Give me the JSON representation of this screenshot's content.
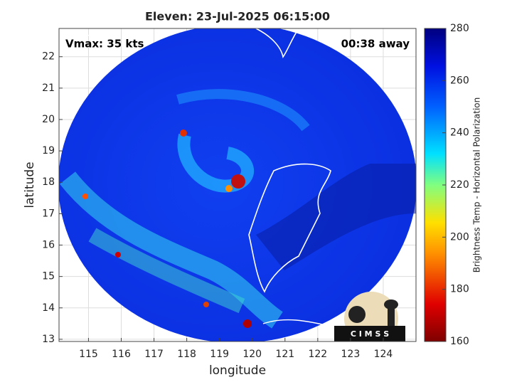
{
  "chart_data": {
    "type": "image",
    "title": "Eleven: 23-Jul-2025 06:15:00",
    "annotations": [
      "Vmax: 35 kts",
      "00:38 away"
    ],
    "xlabel": "longitude",
    "ylabel": "latitude",
    "xlim": [
      114.1,
      125.0
    ],
    "ylim": [
      12.93,
      22.9
    ],
    "xticks": [
      115,
      116,
      117,
      118,
      119,
      120,
      121,
      122,
      123,
      124
    ],
    "yticks": [
      13,
      14,
      15,
      16,
      17,
      18,
      19,
      20,
      21,
      22
    ],
    "grid": true,
    "colorbar": {
      "label": "Brightness Temp - Horizontal Polarization",
      "lim": [
        160,
        280
      ],
      "ticks": [
        160,
        180,
        200,
        220,
        240,
        260,
        280
      ]
    },
    "logo_text": "C I M S S"
  }
}
